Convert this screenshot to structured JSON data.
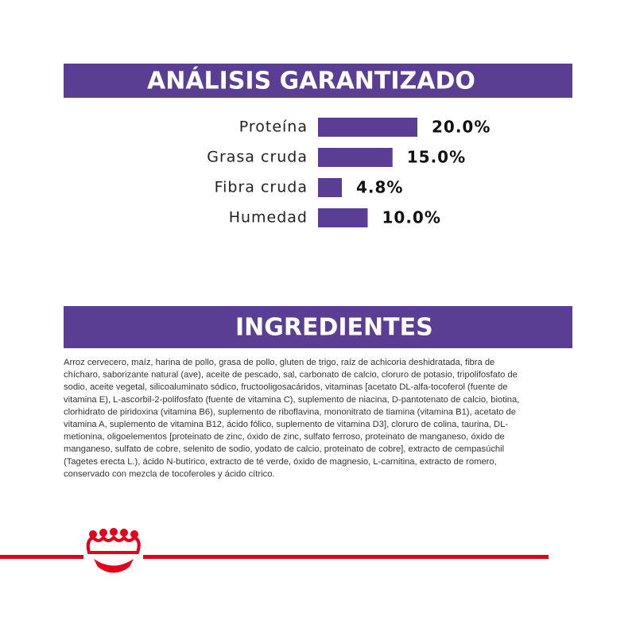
{
  "chart_data": {
    "type": "bar",
    "title": "ANÁLISIS GARANTIZADO",
    "categories": [
      "Proteína",
      "Grasa cruda",
      "Fibra cruda",
      "Humedad"
    ],
    "values": [
      20.0,
      15.0,
      4.8,
      10.0
    ],
    "value_labels": [
      "20.0%",
      "15.0%",
      "4.8%",
      "10.0%"
    ],
    "color": "#5a3e94"
  },
  "ingredients": {
    "title": "INGREDIENTES",
    "lines": [
      "Arroz cervecero, maíz, harina de pollo, grasa de pollo, gluten de trigo, raíz de achicoria deshidratada, fibra de",
      "chícharo, saborizante natural (ave), aceite de pescado, sal, carbonato de calcio, cloruro de potasio, tripolifosfato de",
      "sodio, aceite vegetal, silicoaluminato sódico, fructooligosacáridos, vitaminas [acetato DL-alfa-tocoferol (fuente de",
      "vitamina E), L-ascorbil-2-polifosfato (fuente de vitamina C), suplemento de niacina, D-pantotenato de calcio, biotina,",
      "clorhidrato de piridoxina (vitamina B6), suplemento de riboflavina, mononitrato de tiamina (vitamina B1), acetato de",
      "vitamina A, suplemento de vitamina B12, ácido fólico, suplemento de vitamina D3], cloruro de colina, taurina, DL-",
      "metionina, oligoelementos [proteinato de zinc, óxido de zinc, sulfato ferroso, proteinato de manganeso, óxido de",
      "manganeso, sulfato de cobre, selenito de sodio, yodato de calcio, proteinato de cobre], extracto de cempasúchil",
      "(Tagetes erecta L.), ácido N-butírico, extracto de té verde, óxido de magnesio, L-carnitina, extracto de romero,",
      "conservado con mezcla de tocoferoles y ácido cítrico."
    ]
  }
}
